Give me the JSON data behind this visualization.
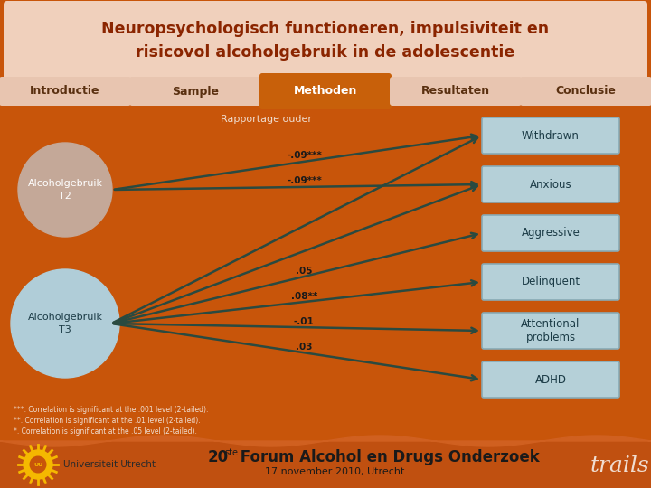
{
  "title_line1": "Neuropsychologisch functioneren, impulsiviteit en",
  "title_line2": "risicovol alcoholgebruik in de adolescentie",
  "title_bg": "#f0d0bc",
  "title_color": "#8B2500",
  "nav_tabs": [
    "Introductie",
    "Sample",
    "Methoden",
    "Resultaten",
    "Conclusie"
  ],
  "nav_active": 2,
  "nav_bg_inactive": "#e8c5b0",
  "nav_bg_active": "#c8600a",
  "nav_text_inactive": "#5a3010",
  "nav_text_active": "#ffffff",
  "main_bg": "#c8550a",
  "circle_t2_color": "#c4a898",
  "circle_t3_color": "#b0cdd8",
  "circle_t2_text": "Alcoholgebruik\nT2",
  "circle_t3_text": "Alcoholgebruik\nT3",
  "rapportage_label": "Rapportage ouder",
  "rapportage_text_color": "#f0ddd0",
  "boxes": [
    "Withdrawn",
    "Anxious",
    "Aggressive",
    "Delinquent",
    "Attentional\nproblems",
    "ADHD"
  ],
  "box_bg": "#b5d0d8",
  "box_border": "#88aab5",
  "box_text_color": "#1a3a45",
  "t2_arrow_labels": [
    "-.09***",
    "-.09***"
  ],
  "t2_arrow_targets": [
    0,
    1
  ],
  "t3_arrow_labels": [
    "",
    "",
    ".05",
    ".08**",
    "-.01",
    ".03"
  ],
  "arrow_color": "#2a4a40",
  "arrow_label_color": "#1a1a1a",
  "footnotes": [
    "***. Correlation is significant at the .001 level (2-tailed).",
    "**. Correlation is significant at the .01 level (2-tailed).",
    "*. Correlation is significant at the .05 level (2-tailed)."
  ],
  "footnote_color": "#f0ddd0",
  "footer_subtext": "17 november 2010, Utrecht",
  "trails_text": "trails",
  "trails_color": "#f0ddd0",
  "uu_text": "Universiteit Utrecht"
}
